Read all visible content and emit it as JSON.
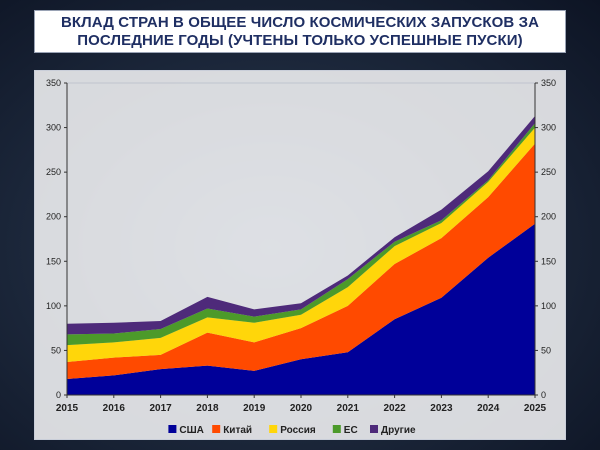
{
  "header": {
    "title": "ВКЛАД СТРАН В ОБЩЕЕ ЧИСЛО КОСМИЧЕСКИХ ЗАПУСКОВ ЗА\nПОСЛЕДНИЕ ГОДЫ (УЧТЕНЫ ТОЛЬКО УСПЕШНЫЕ ПУСКИ)"
  },
  "chart_data": {
    "type": "area",
    "stacked": true,
    "title": "ВКЛАД СТРАН В ОБЩЕЕ ЧИСЛО КОСМИЧЕСКИХ ЗАПУСКОВ ЗА ПОСЛЕДНИЕ ГОДЫ (УЧТЕНЫ ТОЛЬКО УСПЕШНЫЕ ПУСКИ)",
    "xlabel": "",
    "ylabel": "",
    "x": [
      2015,
      2016,
      2017,
      2018,
      2019,
      2020,
      2021,
      2022,
      2023,
      2024,
      2025
    ],
    "ylim": [
      0,
      350
    ],
    "yticks": [
      0,
      50,
      100,
      150,
      200,
      250,
      300,
      350
    ],
    "right_axis": true,
    "grid": false,
    "legend_position": "bottom",
    "series": [
      {
        "name": "США",
        "color": "#000099",
        "values": [
          18,
          22,
          29,
          33,
          27,
          40,
          48,
          85,
          109,
          154,
          192
        ]
      },
      {
        "name": "Китай",
        "color": "#ff4a00",
        "values": [
          19,
          20,
          16,
          37,
          32,
          35,
          52,
          62,
          67,
          68,
          90
        ]
      },
      {
        "name": "Россия",
        "color": "#ffd60a",
        "values": [
          19,
          17,
          19,
          17,
          22,
          15,
          21,
          20,
          17,
          17,
          18
        ]
      },
      {
        "name": "ЕС",
        "color": "#4c9a2a",
        "values": [
          12,
          10,
          10,
          10,
          7,
          6,
          9,
          5,
          3,
          2,
          5
        ]
      },
      {
        "name": "Другие",
        "color": "#4e2a7a",
        "values": [
          12,
          12,
          9,
          13,
          8,
          7,
          4,
          5,
          12,
          10,
          8
        ]
      }
    ]
  }
}
